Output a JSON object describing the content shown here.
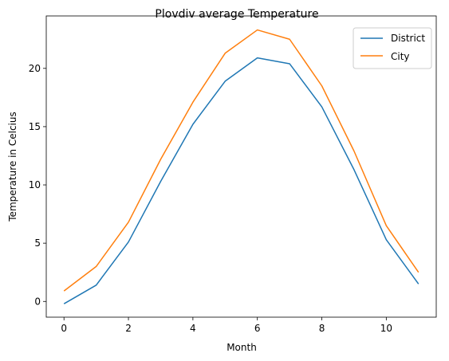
{
  "chart_data": {
    "type": "line",
    "title": "Plovdiv average Temperature",
    "xlabel": "Month",
    "ylabel": "Temperature in Celcius",
    "x": [
      0,
      1,
      2,
      3,
      4,
      5,
      6,
      7,
      8,
      9,
      10,
      11
    ],
    "xlim": [
      -0.55,
      11.55
    ],
    "ylim": [
      -1.35,
      24.5
    ],
    "xticks": [
      0,
      2,
      4,
      6,
      8,
      10
    ],
    "yticks": [
      0,
      5,
      10,
      15,
      20
    ],
    "grid": false,
    "legend_position": "top-right",
    "series": [
      {
        "name": "District",
        "color": "#1f77b4",
        "values": [
          -0.2,
          1.4,
          5.1,
          10.3,
          15.2,
          18.9,
          20.9,
          20.4,
          16.7,
          11.3,
          5.3,
          1.5
        ]
      },
      {
        "name": "City",
        "color": "#ff7f0e",
        "values": [
          0.9,
          3.0,
          6.8,
          12.2,
          17.1,
          21.3,
          23.3,
          22.5,
          18.5,
          12.9,
          6.5,
          2.5
        ]
      }
    ]
  }
}
